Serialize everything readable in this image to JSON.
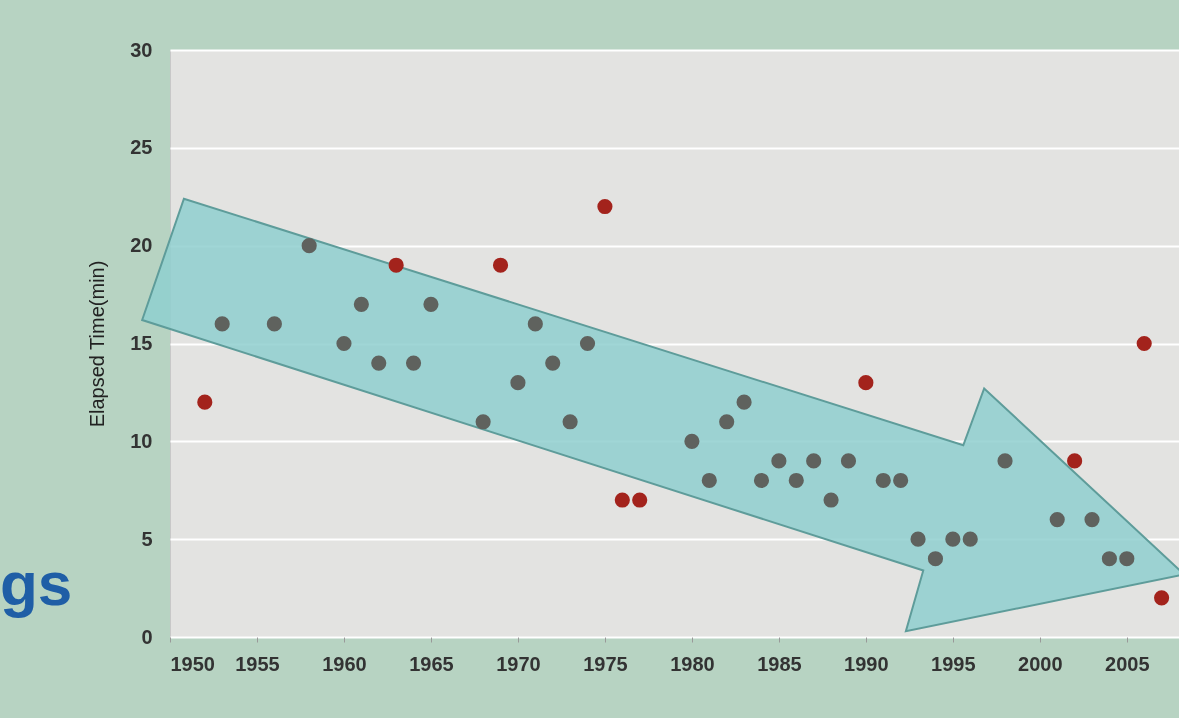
{
  "chart_data": {
    "type": "scatter",
    "ylabel": "Elapsed Time(min)",
    "annotations": [
      "gs"
    ],
    "x": [
      1952,
      1953,
      1956,
      1958,
      1960,
      1961,
      1962,
      1963,
      1964,
      1965,
      1968,
      1969,
      1970,
      1971,
      1972,
      1973,
      1974,
      1975,
      1976,
      1977,
      1980,
      1981,
      1982,
      1983,
      1984,
      1985,
      1986,
      1987,
      1988,
      1989,
      1990,
      1991,
      1992,
      1993,
      1994,
      1995,
      1996,
      1998,
      2001,
      2002,
      2003,
      2004,
      2005,
      2006,
      2007
    ],
    "values": [
      12,
      16,
      16,
      20,
      15,
      17,
      14,
      19,
      14,
      17,
      11,
      19,
      13,
      16,
      14,
      11,
      15,
      22,
      7,
      7,
      10,
      8,
      11,
      12,
      8,
      9,
      8,
      9,
      7,
      9,
      13,
      8,
      8,
      5,
      4,
      5,
      5,
      9,
      6,
      9,
      6,
      4,
      4,
      15,
      2
    ],
    "colors": [
      "#a3231c",
      "#5f625e",
      "#5f625e",
      "#5f625e",
      "#5f625e",
      "#5f625e",
      "#5f625e",
      "#a3231c",
      "#5f625e",
      "#5f625e",
      "#5f625e",
      "#a3231c",
      "#5f625e",
      "#5f625e",
      "#5f625e",
      "#5f625e",
      "#5f625e",
      "#a3231c",
      "#a3231c",
      "#a3231c",
      "#5f625e",
      "#5f625e",
      "#5f625e",
      "#5f625e",
      "#5f625e",
      "#5f625e",
      "#5f625e",
      "#5f625e",
      "#5f625e",
      "#5f625e",
      "#a3231c",
      "#5f625e",
      "#5f625e",
      "#5f625e",
      "#5f625e",
      "#5f625e",
      "#5f625e",
      "#5f625e",
      "#5f625e",
      "#a3231c",
      "#5f625e",
      "#5f625e",
      "#5f625e",
      "#a3231c",
      "#a3231c"
    ],
    "marker": "circle",
    "xlim": [
      1950,
      2008
    ],
    "xticks": [
      1950,
      1955,
      1960,
      1965,
      1970,
      1975,
      1980,
      1985,
      1990,
      1995,
      2000,
      2005
    ],
    "ylim": [
      0,
      30
    ],
    "yticks": [
      0,
      5,
      10,
      15,
      20,
      25,
      30
    ],
    "grid": "y"
  }
}
